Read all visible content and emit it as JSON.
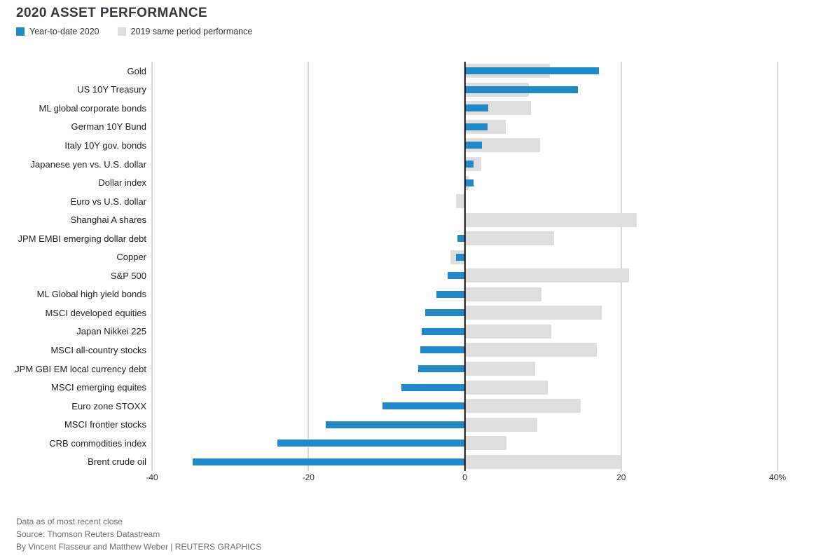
{
  "header": {
    "title": "2020 ASSET PERFORMANCE",
    "legend": [
      {
        "label": "Year-to-date 2020",
        "color": "#2289C9"
      },
      {
        "label": "2019 same period performance",
        "color": "#DEDEDE"
      }
    ]
  },
  "chart_data": {
    "type": "bar",
    "orientation": "horizontal",
    "title": "2020 ASSET PERFORMANCE",
    "categories": [
      "Gold",
      "US 10Y Treasury",
      "ML global corporate bonds",
      "German 10Y Bund",
      "Italy 10Y gov. bonds",
      "Japanese yen vs. U.S. dollar",
      "Dollar index",
      "Euro vs U.S. dollar",
      "Shanghai A shares",
      "JPM EMBI emerging dollar debt",
      "Copper",
      "S&P 500",
      "ML Global high yield bonds",
      "MSCI developed equities",
      "Japan Nikkei 225",
      "MSCI all-country stocks",
      "JPM GBI EM local currency debt",
      "MSCI emerging equites",
      "Euro zone STOXX",
      "MSCI frontier stocks",
      "CRB commodities index",
      "Brent crude oil"
    ],
    "series": [
      {
        "name": "Year-to-date 2020",
        "color": "#2289C9",
        "values": [
          17.2,
          14.5,
          3.0,
          2.9,
          2.2,
          1.1,
          1.1,
          0,
          0,
          -0.9,
          -1.1,
          -2.2,
          -3.6,
          -5.1,
          -5.5,
          -5.7,
          -6.0,
          -8.1,
          -10.5,
          -17.8,
          -24.0,
          -34.8
        ]
      },
      {
        "name": "2019 same period performance",
        "color": "#DEDEDE",
        "values": [
          10.9,
          8.2,
          8.5,
          5.2,
          9.6,
          2.1,
          0.5,
          -1.1,
          22.0,
          11.4,
          -1.8,
          21.0,
          9.8,
          17.5,
          11.1,
          16.9,
          9.0,
          10.6,
          14.8,
          9.3,
          5.3,
          19.9
        ]
      }
    ],
    "xlim": [
      -40,
      40
    ],
    "x_ticks": [
      -40,
      -20,
      0,
      20,
      40
    ],
    "x_tick_labels": [
      "-40",
      "-20",
      "0",
      "20",
      "40%"
    ],
    "grid": "vertical-gridlines",
    "zero_line": true,
    "legend_position": "top-left"
  },
  "footer": {
    "line1": "Data as of most recent close",
    "line2": "Source: Thomson Reuters Datastream",
    "line3": "By Vincent Flasseur and Matthew Weber | REUTERS GRAPHICS"
  }
}
